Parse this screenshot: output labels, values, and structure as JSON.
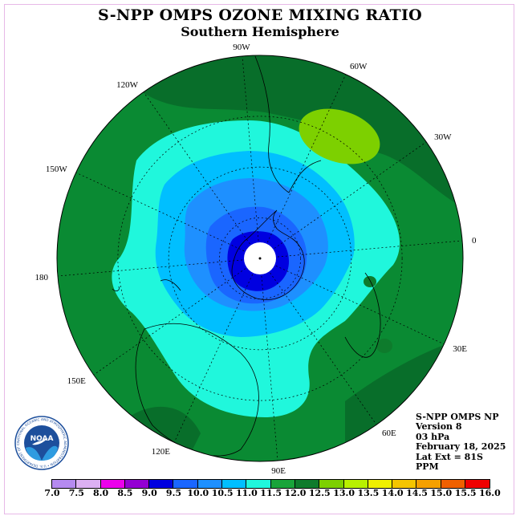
{
  "header": {
    "title": "S-NPP OMPS OZONE MIXING RATIO",
    "subtitle": "Southern Hemisphere"
  },
  "map": {
    "projection": "polar-stereographic-south",
    "lat_extent_label": "Lat Ext = 81S",
    "longitude_labels": [
      {
        "text": "90W",
        "lon": -90
      },
      {
        "text": "60W",
        "lon": -60
      },
      {
        "text": "30W",
        "lon": -30
      },
      {
        "text": "0",
        "lon": 0
      },
      {
        "text": "30E",
        "lon": 30
      },
      {
        "text": "60E",
        "lon": 60
      },
      {
        "text": "90E",
        "lon": 90
      },
      {
        "text": "120E",
        "lon": 120
      },
      {
        "text": "150E",
        "lon": 150
      },
      {
        "text": "180",
        "lon": 180
      },
      {
        "text": "150W",
        "lon": -150
      },
      {
        "text": "120W",
        "lon": -120
      }
    ],
    "ocean_background_color": "#0a8a33"
  },
  "info_block": {
    "lines": [
      "S-NPP OMPS NP",
      "Version 8",
      "03 hPa",
      "February 18, 2025",
      "Lat Ext = 81S",
      "PPM"
    ]
  },
  "colorbar": {
    "labels": [
      "7.0",
      "7.5",
      "8.0",
      "8.5",
      "9.0",
      "9.5",
      "10.0",
      "10.5",
      "11.0",
      "11.5",
      "12.0",
      "12.5",
      "13.0",
      "13.5",
      "14.0",
      "14.5",
      "15.0",
      "15.5",
      "16.0"
    ],
    "colors": [
      "#b58af0",
      "#dcb0f3",
      "#ec00ec",
      "#9400d3",
      "#0000e0",
      "#1a66ff",
      "#1e90ff",
      "#00bfff",
      "#20f7dc",
      "#19a43a",
      "#0e7b2c",
      "#7dd000",
      "#b8f000",
      "#f0f000",
      "#f5c500",
      "#f5a000",
      "#f06000",
      "#f00000",
      "#8b5a3c"
    ]
  },
  "logo": {
    "text": "NOAA",
    "ring_text": "NATIONAL OCEANIC AND ATMOSPHERIC ADMINISTRATION • U.S. DEPARTMENT OF COMMERCE"
  }
}
